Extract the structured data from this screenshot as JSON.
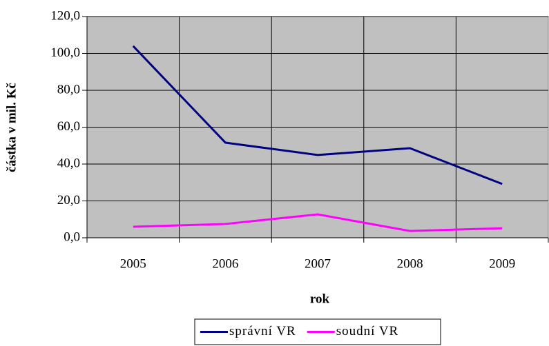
{
  "chart_data": {
    "type": "line",
    "x_label": "rok",
    "y_label": "částka v mil. Kč",
    "categories": [
      "2005",
      "2006",
      "2007",
      "2008",
      "2009"
    ],
    "series": [
      {
        "name": "správní VR",
        "color": "#000080",
        "values": [
          104.0,
          51.6,
          44.9,
          48.6,
          29.2
        ]
      },
      {
        "name": "soudní VR",
        "color": "#ff00ff",
        "values": [
          6.0,
          7.5,
          12.7,
          3.7,
          5.2
        ]
      }
    ],
    "ylim": [
      0,
      120
    ],
    "yticks": [
      {
        "value": 0,
        "label": "0,0"
      },
      {
        "value": 20,
        "label": "20,0"
      },
      {
        "value": 40,
        "label": "40,0"
      },
      {
        "value": 60,
        "label": "60,0"
      },
      {
        "value": 80,
        "label": "80,0"
      },
      {
        "value": 100,
        "label": "100,0"
      },
      {
        "value": 120,
        "label": "120,0"
      }
    ],
    "grid": true,
    "legend": "bottom",
    "background": "#c0c0c0"
  }
}
